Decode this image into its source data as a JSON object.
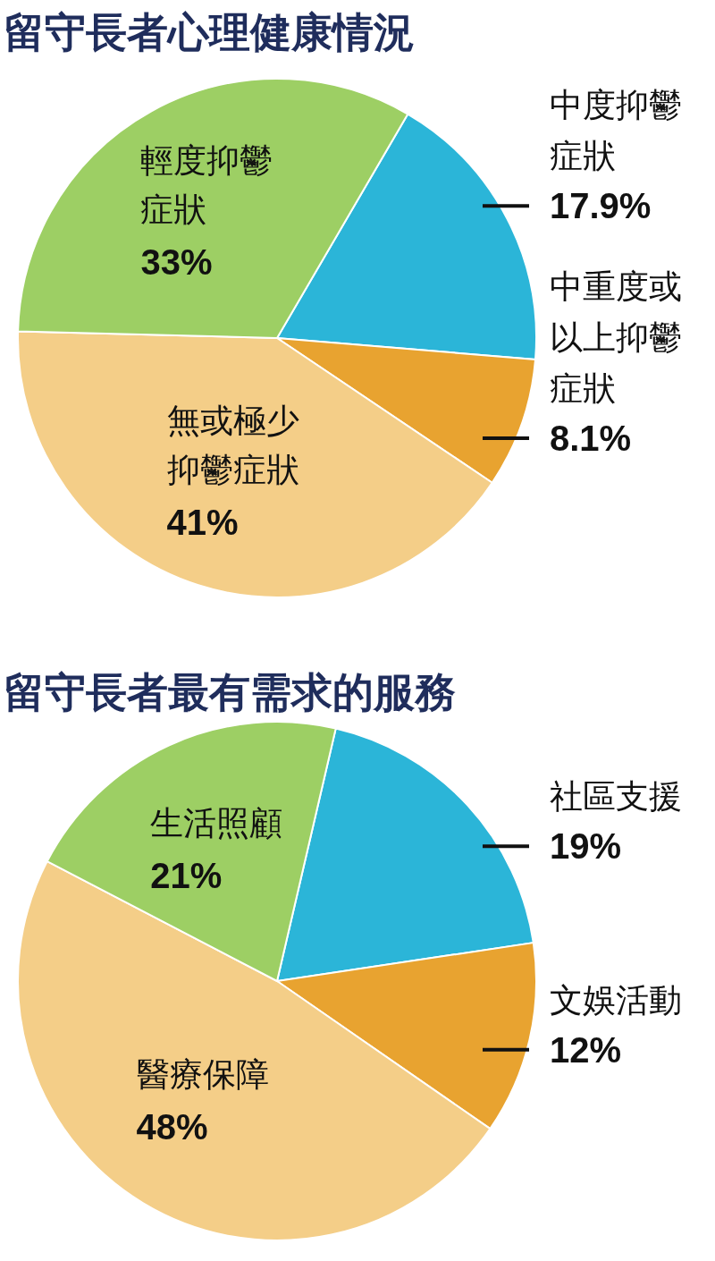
{
  "chart_data": [
    {
      "type": "pie",
      "title": "留守長者心理健康情況",
      "categories": [
        "中度抑鬱症狀",
        "中重度或以上抑鬱症狀",
        "無或極少抑鬱症狀",
        "輕度抑鬱症狀"
      ],
      "values": [
        17.9,
        8.1,
        41,
        33
      ],
      "value_labels": [
        "17.9%",
        "8.1%",
        "41%",
        "33%"
      ],
      "colors": [
        "#2bb5d8",
        "#e8a330",
        "#f4ce88",
        "#9dcf64"
      ]
    },
    {
      "type": "pie",
      "title": "留守長者最有需求的服務",
      "categories": [
        "社區支援",
        "文娛活動",
        "醫療保障",
        "生活照顧"
      ],
      "values": [
        19,
        12,
        48,
        21
      ],
      "value_labels": [
        "19%",
        "12%",
        "48%",
        "21%"
      ],
      "colors": [
        "#2bb5d8",
        "#e8a330",
        "#f4ce88",
        "#9dcf64"
      ]
    }
  ]
}
